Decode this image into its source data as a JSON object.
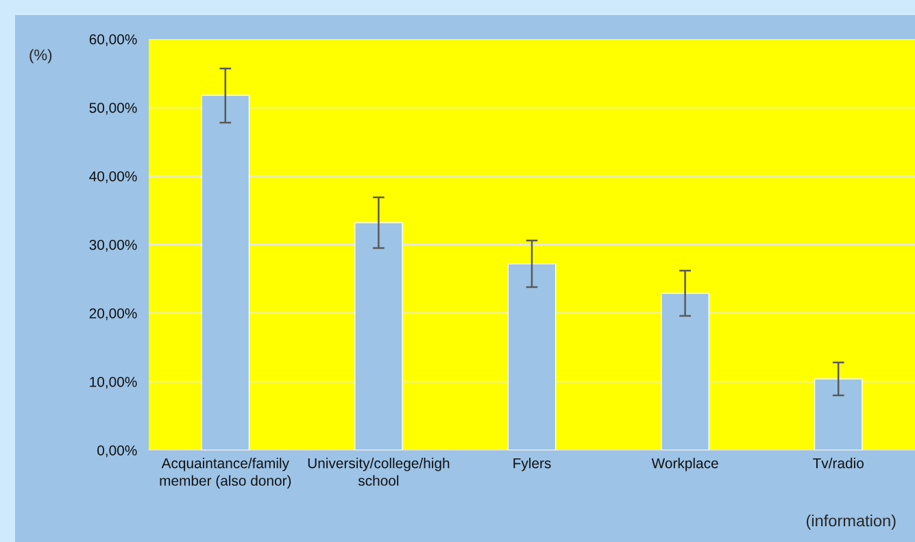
{
  "chart_data": {
    "type": "bar",
    "categories": [
      "Acquaintance/family\nmember (also donor)",
      "University/college/high\nschool",
      "Fylers",
      "Workplace",
      "Tv/radio"
    ],
    "values": [
      51.8,
      33.2,
      27.2,
      22.9,
      10.4
    ],
    "errors": [
      [
        47.8,
        55.7
      ],
      [
        29.5,
        36.9
      ],
      [
        23.8,
        30.6
      ],
      [
        19.6,
        26.2
      ],
      [
        8.0,
        12.8
      ]
    ],
    "color": "#9dc3e6",
    "ylabel": "(%)",
    "xlabel": "(information)",
    "ylim": [
      0,
      60
    ],
    "yticks": [
      {
        "value": 0,
        "label": "0,00%"
      },
      {
        "value": 10,
        "label": "10,00%"
      },
      {
        "value": 20,
        "label": "20,00%"
      },
      {
        "value": 30,
        "label": "30,00%"
      },
      {
        "value": 40,
        "label": "40,00%"
      },
      {
        "value": 50,
        "label": "50,00%"
      },
      {
        "value": 60,
        "label": "60,00%"
      }
    ],
    "grid": "y",
    "legend": false
  }
}
